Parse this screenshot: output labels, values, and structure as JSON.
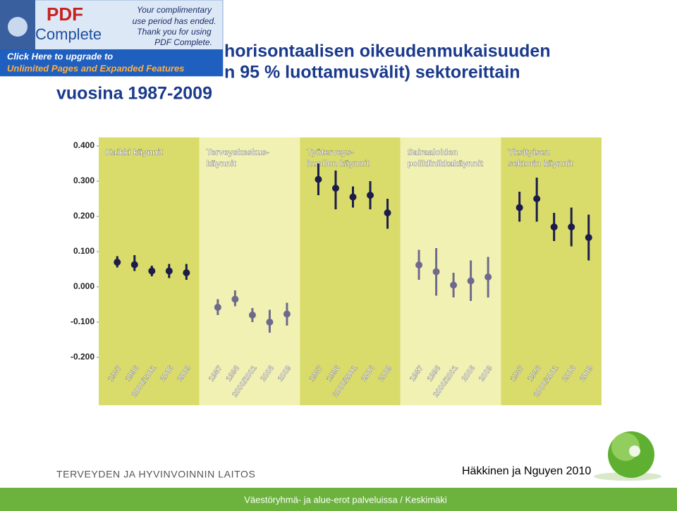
{
  "slide": {
    "title_lines": [
      "horisontaalisen oikeudenmukaisuuden",
      "n 95 % luottamusvälit) sektoreittain",
      "vuosina 1987-2009"
    ],
    "organization": "TERVEYDEN JA HYVINVOINNIN LAITOS",
    "source": "Häkkinen ja Nguyen 2010",
    "footer": "Väestöryhmä- ja alue-erot palveluissa / Keskimäki"
  },
  "overlay": {
    "logo_top": "PDF",
    "logo_bottom": "Complete",
    "message_lines": [
      "Your complimentary",
      "use period has ended.",
      "Thank you for using",
      "PDF Complete."
    ],
    "upgrade_lines": [
      "Click Here to upgrade to",
      "Unlimited Pages and Expanded Features"
    ]
  },
  "chart_data": {
    "type": "errorbar",
    "categories": [
      "1987",
      "1996",
      "2000/2001",
      "2006",
      "2009"
    ],
    "ylim": [
      -0.2,
      0.4
    ],
    "yticks": [
      {
        "value": 0.4,
        "label": "0.400"
      },
      {
        "value": 0.3,
        "label": "0.300"
      },
      {
        "value": 0.2,
        "label": "0.200"
      },
      {
        "value": 0.1,
        "label": "0.100"
      },
      {
        "value": 0,
        "label": "0.000"
      },
      {
        "value": -0.1,
        "label": "-0.100"
      },
      {
        "value": -0.2,
        "label": "-0.200"
      }
    ],
    "series": [
      {
        "name": [
          "Kaikki käynnit"
        ],
        "color": "#1c1c4c",
        "background": "#d9dc6a",
        "values": [
          0.07,
          0.063,
          0.045,
          0.045,
          0.04
        ],
        "lower": [
          0.055,
          0.045,
          0.03,
          0.025,
          0.02
        ],
        "upper": [
          0.087,
          0.09,
          0.06,
          0.065,
          0.065
        ]
      },
      {
        "name": [
          "Terveyskeskus-",
          "käynnit"
        ],
        "color": "#6e6a8c",
        "background": "#f2f1b4",
        "values": [
          -0.058,
          -0.035,
          -0.08,
          -0.1,
          -0.077
        ],
        "lower": [
          -0.08,
          -0.055,
          -0.1,
          -0.13,
          -0.11
        ],
        "upper": [
          -0.035,
          -0.01,
          -0.06,
          -0.065,
          -0.045
        ]
      },
      {
        "name": [
          "Työterveys-",
          "huollon käynnit"
        ],
        "color": "#1c1c4c",
        "background": "#d9dc6a",
        "values": [
          0.305,
          0.28,
          0.255,
          0.26,
          0.21
        ],
        "lower": [
          0.26,
          0.22,
          0.225,
          0.22,
          0.165
        ],
        "upper": [
          0.35,
          0.33,
          0.285,
          0.3,
          0.25
        ]
      },
      {
        "name": [
          "Sairaaloiden",
          "poliklinikkakäynnit"
        ],
        "color": "#6e6a8c",
        "background": "#f2f1b4",
        "values": [
          0.062,
          0.043,
          0.005,
          0.017,
          0.028
        ],
        "lower": [
          0.02,
          -0.025,
          -0.03,
          -0.04,
          -0.03
        ],
        "upper": [
          0.105,
          0.11,
          0.04,
          0.075,
          0.085
        ]
      },
      {
        "name": [
          "Yksityisen",
          "sektorin käynnit"
        ],
        "color": "#1c1c4c",
        "background": "#d9dc6a",
        "values": [
          0.225,
          0.25,
          0.17,
          0.17,
          0.14
        ],
        "lower": [
          0.185,
          0.185,
          0.13,
          0.115,
          0.075
        ],
        "upper": [
          0.27,
          0.31,
          0.21,
          0.225,
          0.205
        ]
      }
    ]
  }
}
